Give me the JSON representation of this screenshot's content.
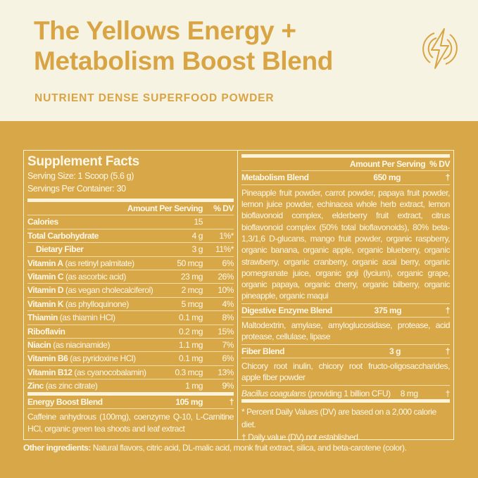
{
  "header": {
    "title_line1": "The Yellows Energy +",
    "title_line2": "Metabolism Boost Blend",
    "subtitle": "NUTRIENT DENSE SUPERFOOD POWDER",
    "logo_icon": "lightning-bolt-circle-icon"
  },
  "colors": {
    "cream": "#F7F3E3",
    "gold": "#D8A848",
    "title_gold": "#D9A443"
  },
  "facts": {
    "title": "Supplement Facts",
    "serving_size": "Serving Size: 1 Scoop (5.6 g)",
    "servings_per_container": "Servings Per Container: 30",
    "col_amount": "Amount Per Serving",
    "col_dv": "% DV",
    "rows": [
      {
        "name": "Calories",
        "amount": "15",
        "dv": ""
      },
      {
        "name": "Total Carbohydrate",
        "amount": "4 g",
        "dv": "1%*"
      },
      {
        "name": "Dietary Fiber",
        "amount": "3 g",
        "dv": "11%*"
      },
      {
        "name": "Vitamin A",
        "qual": " (as retinyl palmitate)",
        "amount": "50 mcg",
        "dv": "6%"
      },
      {
        "name": "Vitamin C",
        "qual": " (as ascorbic acid)",
        "amount": "23 mg",
        "dv": "26%"
      },
      {
        "name": "Vitamin D",
        "qual": " (as  vegan cholecalciferol)",
        "amount": "2 mcg",
        "dv": "10%"
      },
      {
        "name": "Vitamin K",
        "qual": " (as phylloquinone)",
        "amount": "5 mcg",
        "dv": "4%"
      },
      {
        "name": "Thiamin",
        "qual": " (as thiamin HCl)",
        "amount": "0.1 mg",
        "dv": "8%"
      },
      {
        "name": "Riboflavin",
        "qual": "",
        "amount": "0.2 mg",
        "dv": "15%"
      },
      {
        "name": "Niacin",
        "qual": " (as niacinamide)",
        "amount": "1.1 mg",
        "dv": "7%"
      },
      {
        "name": "Vitamin B6",
        "qual": " (as pyridoxine HCl)",
        "amount": "0.1 mg",
        "dv": "6%"
      },
      {
        "name": "Vitamin B12",
        "qual": " (as cyanocobalamin)",
        "amount": "0.3 mcg",
        "dv": "13%"
      },
      {
        "name": "Zinc",
        "qual": " (as zinc citrate)",
        "amount": "1 mg",
        "dv": "9%"
      }
    ],
    "energy": {
      "name": "Energy Boost Blend",
      "amount": "105 mg",
      "dv": "†",
      "ingredients": "Caffeine anhydrous (100mg), coenzyme Q-10, L-Carnitine HCl, organic green tea shoots and leaf extract"
    },
    "metabolism": {
      "name": "Metabolism Blend",
      "amount": "650 mg",
      "dv": "†",
      "ingredients": "Pineapple fruit powder, carrot powder, papaya fruit powder, lemon juice powder, echinacea whole herb extract, lemon bioflavonoid complex, elderberry fruit extract, citrus bioflavonoid complex (50% total bioflavonoids), 80% beta-1,3/1,6 D-glucans, mango fruit powder, organic raspberry, organic banana, organic apple, organic blueberry, organic strawberry, organic cranberry, organic acai berry, organic pomegranate juice, organic goji (lycium), organic grape, organic papaya, organic cherry, organic bilberry, organic pineapple, organic maqui"
    },
    "digestive": {
      "name": "Digestive Enzyme Blend",
      "amount": "375 mg",
      "dv": "†",
      "ingredients": "Maltodextrin, amylase, amyloglucosidase, protease, acid protease, cellulase, lipase"
    },
    "fiber": {
      "name": "Fiber Blend",
      "amount": "3 g",
      "dv": "†",
      "ingredients": "Chicory root inulin, chicory root fructo-oligosaccharides, apple fiber powder"
    },
    "bacillus": {
      "name": "Bacillus coagulans",
      "qual": "  (providing 1 billion CFU)",
      "amount": "8 mg",
      "dv": "†"
    },
    "note1": "* Percent Daily Values (DV) are based on a 2,000 calorie diet.",
    "note2": "† Daily value (DV) not established."
  },
  "other": {
    "label": "Other ingredients:",
    "text": " Natural flavors, citric acid, DL-malic acid, monk fruit extract, silica, and beta-carotene (color)."
  }
}
